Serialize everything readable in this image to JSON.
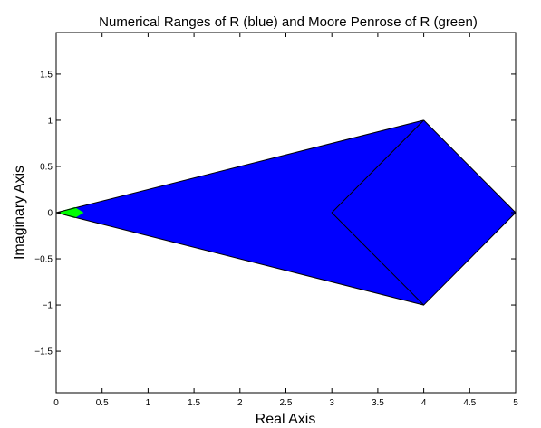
{
  "chart_data": {
    "type": "area",
    "title": "Numerical Ranges of R (blue) and Moore Penrose of R (green)",
    "xlabel": "Real Axis",
    "ylabel": "Imaginary Axis",
    "xlim": [
      0,
      5
    ],
    "ylim": [
      -1.95,
      1.95
    ],
    "x_ticks": [
      0,
      0.5,
      1,
      1.5,
      2,
      2.5,
      3,
      3.5,
      4,
      4.5,
      5
    ],
    "x_tick_labels": [
      "0",
      "0.5",
      "1",
      "1.5",
      "2",
      "2.5",
      "3",
      "3.5",
      "4",
      "4.5",
      "5"
    ],
    "y_ticks": [
      -1.5,
      -1,
      -0.5,
      0,
      0.5,
      1,
      1.5
    ],
    "y_tick_labels": [
      "−1.5",
      "−1",
      "−0.5",
      "0",
      "0.5",
      "1",
      "1.5"
    ],
    "grid": false,
    "regions": [
      {
        "name": "blue",
        "color": "#0000ff",
        "points": [
          [
            0,
            0
          ],
          [
            4,
            1
          ],
          [
            5,
            0
          ],
          [
            4,
            -1
          ]
        ]
      },
      {
        "name": "green",
        "color": "#00ff00",
        "points": [
          [
            0,
            0
          ],
          [
            0.2,
            0.06
          ],
          [
            0.3,
            0
          ],
          [
            0.2,
            -0.06
          ]
        ]
      }
    ],
    "lines": [
      {
        "points": [
          [
            0,
            0
          ],
          [
            4,
            1
          ]
        ]
      },
      {
        "points": [
          [
            0,
            0
          ],
          [
            4,
            -1
          ]
        ]
      },
      {
        "points": [
          [
            4,
            1
          ],
          [
            5,
            0
          ],
          [
            4,
            -1
          ],
          [
            3,
            0
          ],
          [
            4,
            1
          ]
        ]
      }
    ]
  }
}
